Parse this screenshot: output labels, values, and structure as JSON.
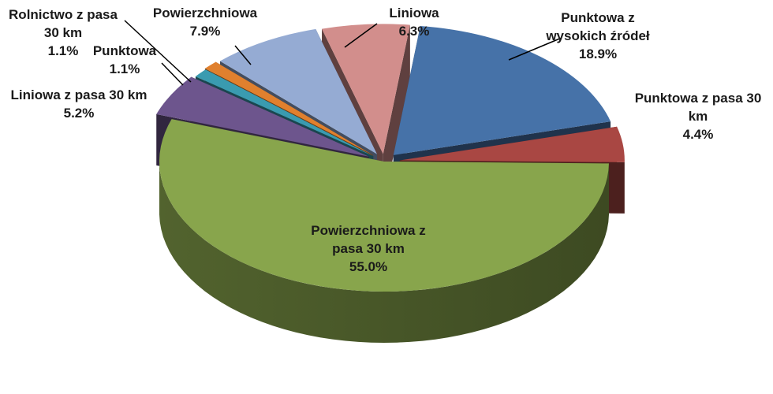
{
  "chart_data": {
    "type": "pie",
    "title": "",
    "slices": [
      {
        "label": [
          "Punktowa z",
          "wysokich źródeł"
        ],
        "value": 18.9,
        "value_text": "18.9%",
        "color": "#4672a8"
      },
      {
        "label": [
          "Punktowa z pasa 30",
          "km"
        ],
        "value": 4.4,
        "value_text": "4.4%",
        "color": "#a94743"
      },
      {
        "label": [
          "Powierzchniowa z",
          "pasa 30 km"
        ],
        "value": 55.0,
        "value_text": "55.0%",
        "color": "#88a54c"
      },
      {
        "label": [
          "Liniowa z pasa 30 km"
        ],
        "value": 5.2,
        "value_text": "5.2%",
        "color": "#6d558d"
      },
      {
        "label": [
          "Punktowa"
        ],
        "value": 1.1,
        "value_text": "1.1%",
        "color": "#3a9bb0"
      },
      {
        "label": [
          "Rolnictwo z pasa",
          "30 km"
        ],
        "value": 1.1,
        "value_text": "1.1%",
        "color": "#e0802e"
      },
      {
        "label": [
          "Powierzchniowa"
        ],
        "value": 7.9,
        "value_text": "7.9%",
        "color": "#95abd3"
      },
      {
        "label": [
          "Liniowa"
        ],
        "value": 6.3,
        "value_text": "6.3%",
        "color": "#d28e8c"
      }
    ]
  }
}
